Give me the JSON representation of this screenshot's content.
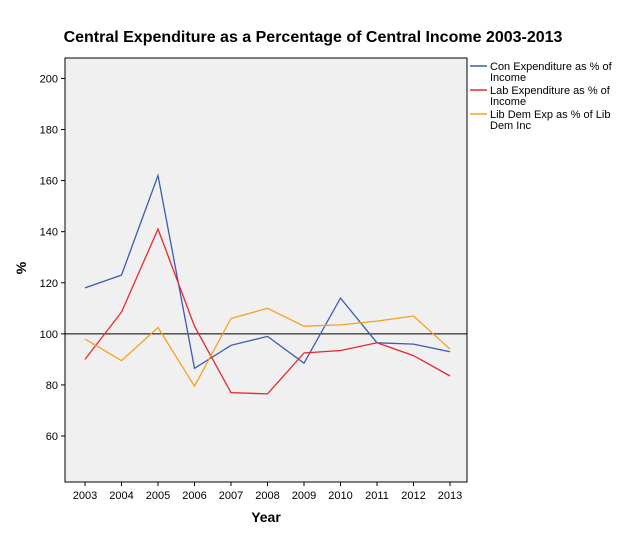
{
  "chart_data": {
    "type": "line",
    "title": "Central Expenditure as a Percentage of Central Income 2003-2013",
    "xlabel": "Year",
    "ylabel": "%",
    "categories": [
      "2003",
      "2004",
      "2005",
      "2006",
      "2007",
      "2008",
      "2009",
      "2010",
      "2011",
      "2012",
      "2013"
    ],
    "ylim": [
      42,
      208
    ],
    "yticks": [
      60,
      80,
      100,
      120,
      140,
      160,
      180,
      200
    ],
    "reference_line": 100,
    "grid": false,
    "legend_position": "right",
    "series": [
      {
        "name": "Con Expenditure as % of Income",
        "legend_lines": [
          "Con Expenditure as % of",
          "Income"
        ],
        "color": "#3c5ab4",
        "values": [
          118,
          123,
          162,
          86.5,
          95.5,
          99,
          88.5,
          114,
          96.5,
          96,
          93
        ]
      },
      {
        "name": "Lab Expenditure as % of Income",
        "legend_lines": [
          "Lab Expenditure as % of",
          "Income"
        ],
        "color": "#e6282d",
        "values": [
          90,
          108.5,
          141,
          103,
          77,
          76.5,
          92.5,
          93.5,
          96.5,
          91.5,
          83.5
        ]
      },
      {
        "name": "Lib Dem Exp as % of Lib Dem Inc",
        "legend_lines": [
          "Lib Dem Exp as % of Lib",
          "Dem Inc"
        ],
        "color": "#f5a020",
        "values": [
          98,
          89.5,
          102.5,
          79.5,
          106,
          110,
          103,
          103.5,
          105,
          107,
          94
        ]
      }
    ]
  }
}
